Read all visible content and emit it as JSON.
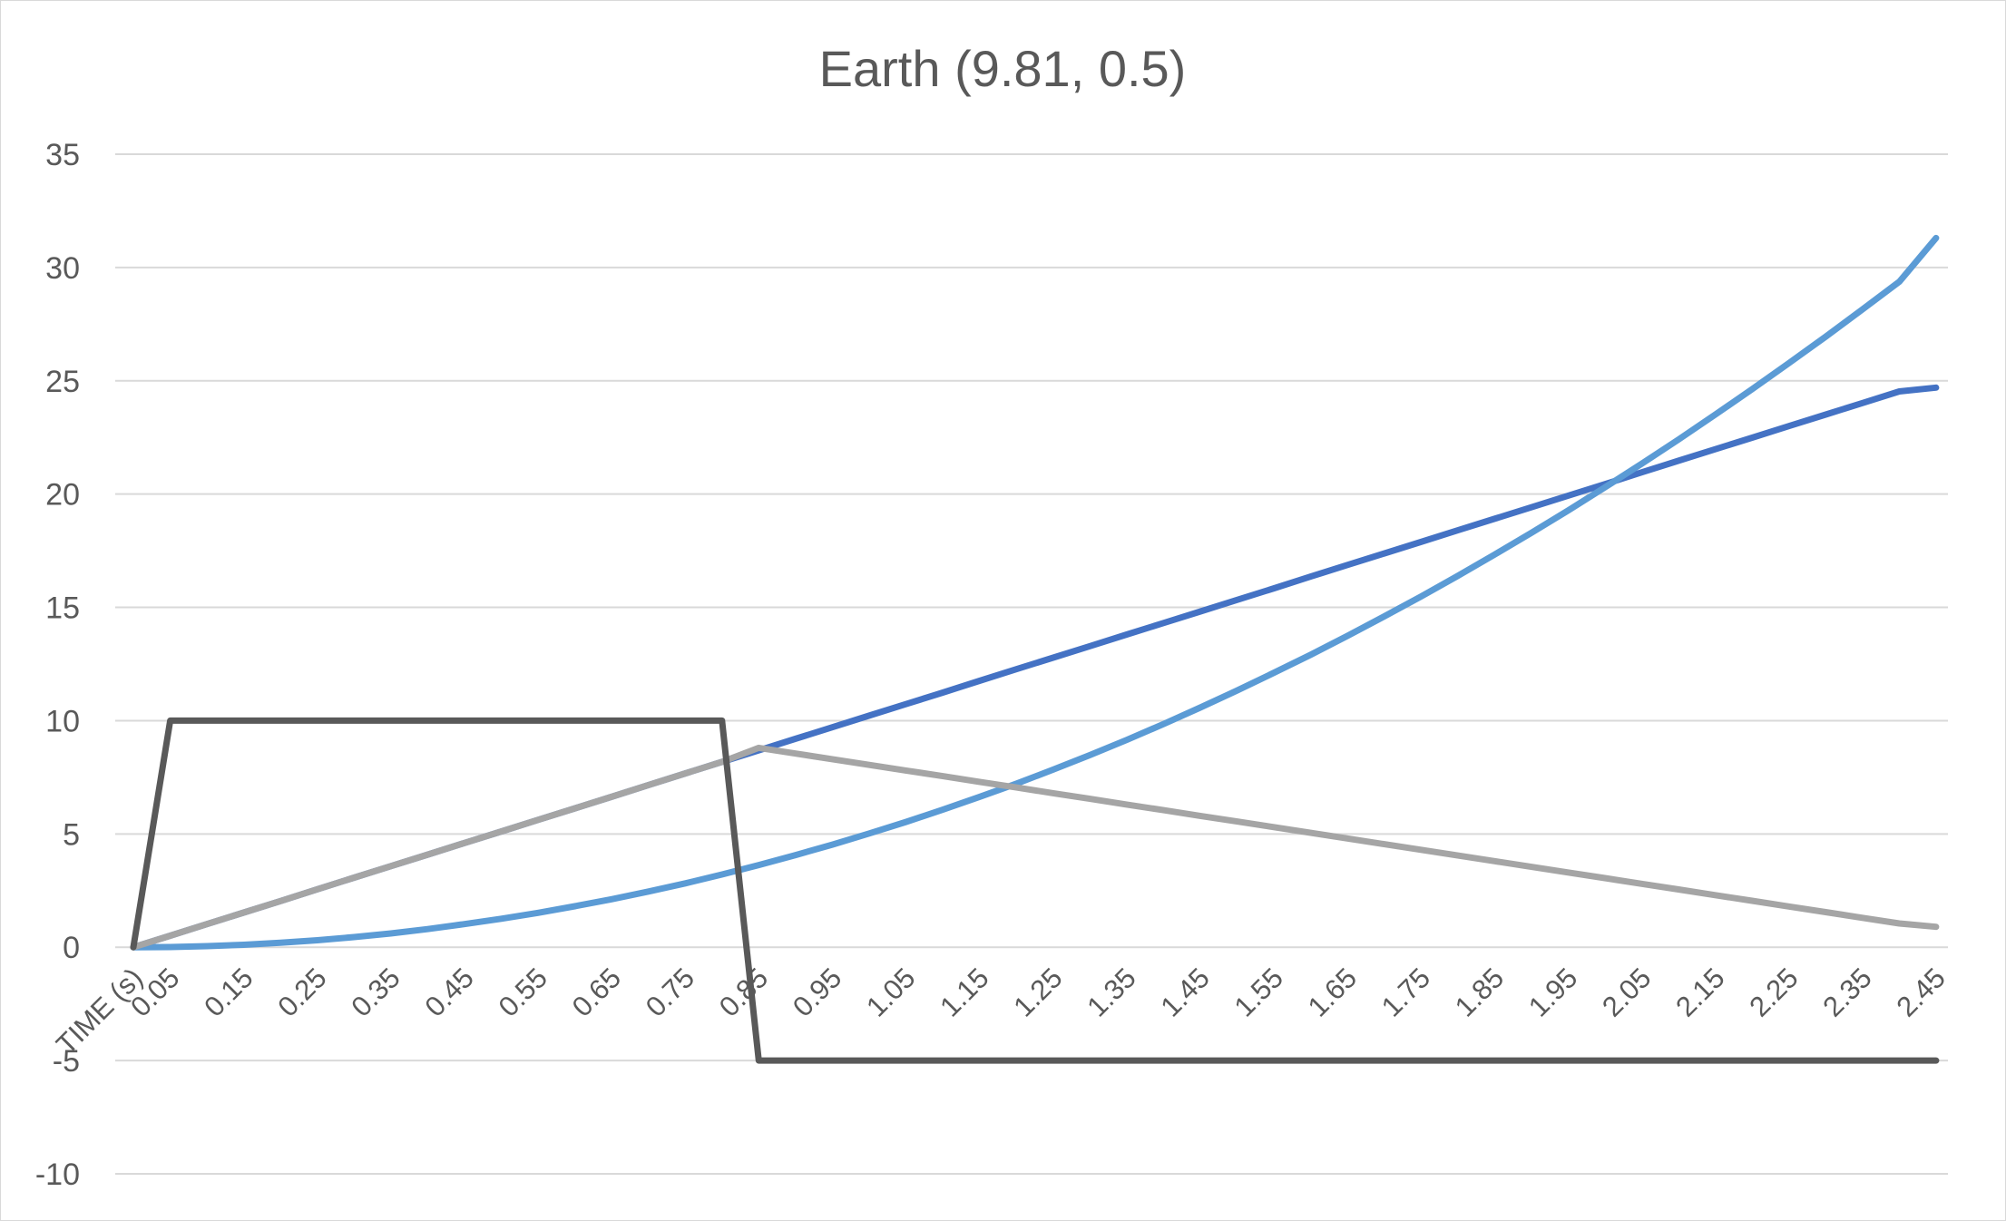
{
  "chart_data": {
    "type": "line",
    "title": "Earth (9.81, 0.5)",
    "xlabel": "",
    "ylabel": "",
    "ylim": [
      -10,
      35
    ],
    "yticks": [
      "-10",
      "-5",
      "0",
      "5",
      "10",
      "15",
      "20",
      "25",
      "30",
      "35"
    ],
    "grid": true,
    "legend": "none",
    "x_tick_labels": [
      "TIME (s)",
      "0.05",
      "0.15",
      "0.25",
      "0.35",
      "0.45",
      "0.55",
      "0.65",
      "0.75",
      "0.85",
      "0.95",
      "1.05",
      "1.15",
      "1.25",
      "1.35",
      "1.45",
      "1.55",
      "1.65",
      "1.75",
      "1.85",
      "1.95",
      "2.05",
      "2.15",
      "2.25",
      "2.35",
      "2.45"
    ],
    "x": [
      0,
      0.05,
      0.1,
      0.15,
      0.2,
      0.25,
      0.3,
      0.35,
      0.4,
      0.45,
      0.5,
      0.55,
      0.6,
      0.65,
      0.7,
      0.75,
      0.8,
      0.85,
      0.9,
      0.95,
      1.0,
      1.05,
      1.1,
      1.15,
      1.2,
      1.25,
      1.3,
      1.35,
      1.4,
      1.45,
      1.5,
      1.55,
      1.6,
      1.65,
      1.7,
      1.75,
      1.8,
      1.85,
      1.9,
      1.95,
      2.0,
      2.05,
      2.1,
      2.15,
      2.2,
      2.25,
      2.3,
      2.35,
      2.4,
      2.45
    ],
    "series": [
      {
        "color": "#4472c4",
        "values": [
          0,
          0.51,
          1.02,
          1.53,
          2.04,
          2.56,
          3.07,
          3.58,
          4.09,
          4.6,
          5.11,
          5.62,
          6.13,
          6.64,
          7.16,
          7.67,
          8.18,
          8.69,
          9.2,
          9.71,
          10.22,
          10.73,
          11.24,
          11.76,
          12.27,
          12.78,
          13.29,
          13.8,
          14.31,
          14.82,
          15.33,
          15.84,
          16.36,
          16.87,
          17.38,
          17.89,
          18.4,
          18.91,
          19.42,
          19.93,
          20.44,
          20.96,
          21.47,
          21.98,
          22.49,
          23.0,
          23.51,
          24.02,
          24.53,
          24.7
        ]
      },
      {
        "color": "#5b9bd5",
        "values": [
          0,
          0.01,
          0.05,
          0.11,
          0.2,
          0.31,
          0.45,
          0.61,
          0.8,
          1.02,
          1.26,
          1.52,
          1.81,
          2.12,
          2.46,
          2.82,
          3.21,
          3.63,
          4.07,
          4.53,
          5.02,
          5.53,
          6.07,
          6.64,
          7.22,
          7.84,
          8.48,
          9.15,
          9.85,
          10.58,
          11.33,
          12.11,
          12.91,
          13.74,
          14.6,
          15.48,
          16.39,
          17.33,
          18.29,
          19.28,
          20.3,
          21.34,
          22.41,
          23.51,
          24.63,
          25.78,
          26.95,
          28.15,
          29.37,
          31.3
        ]
      },
      {
        "color": "#a5a5a5",
        "values": [
          0,
          0.51,
          1.02,
          1.53,
          2.04,
          2.56,
          3.07,
          3.58,
          4.09,
          4.6,
          5.11,
          5.62,
          6.13,
          6.64,
          7.16,
          7.67,
          8.18,
          8.8,
          8.55,
          8.3,
          8.05,
          7.8,
          7.55,
          7.3,
          7.05,
          6.8,
          6.55,
          6.3,
          6.05,
          5.8,
          5.55,
          5.3,
          5.05,
          4.8,
          4.55,
          4.3,
          4.05,
          3.8,
          3.55,
          3.3,
          3.05,
          2.8,
          2.55,
          2.3,
          2.05,
          1.8,
          1.55,
          1.3,
          1.05,
          0.9
        ]
      },
      {
        "color": "#595959",
        "values": [
          0,
          10,
          10,
          10,
          10,
          10,
          10,
          10,
          10,
          10,
          10,
          10,
          10,
          10,
          10,
          10,
          10,
          -5,
          -5,
          -5,
          -5,
          -5,
          -5,
          -5,
          -5,
          -5,
          -5,
          -5,
          -5,
          -5,
          -5,
          -5,
          -5,
          -5,
          -5,
          -5,
          -5,
          -5,
          -5,
          -5,
          -5,
          -5,
          -5,
          -5,
          -5,
          -5,
          -5,
          -5,
          -5,
          -5
        ]
      }
    ]
  }
}
